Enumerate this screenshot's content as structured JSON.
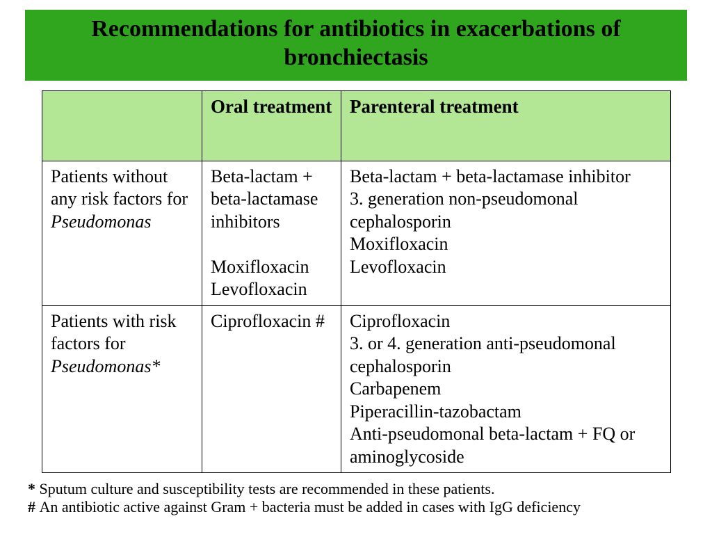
{
  "colors": {
    "title_bg": "#2fa61d",
    "header_bg": "#b4e795",
    "cell_bg": "#ffffff",
    "border": "#000000",
    "text": "#000000"
  },
  "title": "Recommendations for antibiotics in exacerbations of bronchiectasis",
  "table": {
    "headers": {
      "col1": "",
      "col2": "Oral treatment",
      "col3": "Parenteral treatment"
    },
    "rows": [
      {
        "label_plain": "Patients without any risk factors for ",
        "label_italic": "Pseudomonas",
        "oral_line1": "Beta-lactam + beta-lactamase inhibitors",
        "oral_line2": "Moxifloxacin",
        "oral_line3": "Levofloxacin",
        "parenteral_line1": "Beta-lactam + beta-lactamase inhibitor",
        "parenteral_line2": "3. generation non-pseudomonal cephalosporin",
        "parenteral_line3": "Moxifloxacin",
        "parenteral_line4": "Levofloxacin"
      },
      {
        "label_plain": "Patients with risk factors for ",
        "label_italic": "Pseudomonas*",
        "oral_line1": "Ciprofloxacin #",
        "parenteral_line1": "Ciprofloxacin",
        "parenteral_line2": "3. or 4. generation anti-pseudomonal cephalosporin",
        "parenteral_line3": "Carbapenem",
        "parenteral_line4": "Piperacillin-tazobactam",
        "parenteral_line5": "Anti-pseudomonal beta-lactam + FQ  or aminoglycoside"
      }
    ]
  },
  "footnotes": {
    "f1_mark": "* ",
    "f1_text": "Sputum culture and susceptibility tests are recommended in these patients.",
    "f2_mark": "# ",
    "f2_text": "An antibiotic active against Gram + bacteria must be added in cases with IgG deficiency"
  }
}
